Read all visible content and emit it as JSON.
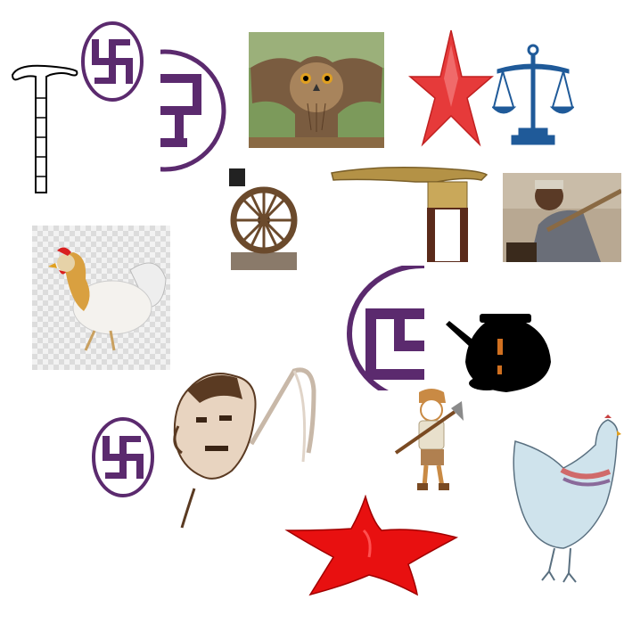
{
  "canvas": {
    "background": "#ffffff"
  },
  "symbols": [
    {
      "id": "walking-stick",
      "icon": "walking-stick-icon",
      "color": "#000000"
    },
    {
      "id": "swastika-ring-small",
      "icon": "swastika-icon",
      "color": "#5b2a6e"
    },
    {
      "id": "swastika-ring-cropped",
      "icon": "swastika-icon",
      "color": "#5b2a6e"
    },
    {
      "id": "owl-photo",
      "icon": "owl-icon",
      "color": "#7a5c40"
    },
    {
      "id": "red-star-outline",
      "icon": "star-icon",
      "color": "#e63a3a"
    },
    {
      "id": "scales-of-justice",
      "icon": "scales-icon",
      "color": "#1f5a99"
    },
    {
      "id": "cart-wheel",
      "icon": "wheel-icon",
      "color": "#6b4a2c"
    },
    {
      "id": "umbrella-handle",
      "icon": "umbrella-icon",
      "color": "#b49246"
    },
    {
      "id": "farmer-photo",
      "icon": "farmer-icon",
      "color": "#7d6a55"
    },
    {
      "id": "rooster-photo",
      "icon": "rooster-icon",
      "color": "#d9481f"
    },
    {
      "id": "swastika-ring-large",
      "icon": "swastika-icon",
      "color": "#5b2a6e"
    },
    {
      "id": "water-pot",
      "icon": "pot-icon",
      "color": "#000000"
    },
    {
      "id": "swastika-ring-bottom",
      "icon": "swastika-icon",
      "color": "#5b2a6e"
    },
    {
      "id": "man-with-sickle",
      "icon": "man-sickle-icon",
      "color": "#5a3a22"
    },
    {
      "id": "boy-with-hoe",
      "icon": "boy-hoe-icon",
      "color": "#c98a44"
    },
    {
      "id": "hen-sketch",
      "icon": "hen-icon",
      "color": "#cfe3ec"
    },
    {
      "id": "red-star-solid",
      "icon": "star-icon",
      "color": "#e81010"
    }
  ]
}
